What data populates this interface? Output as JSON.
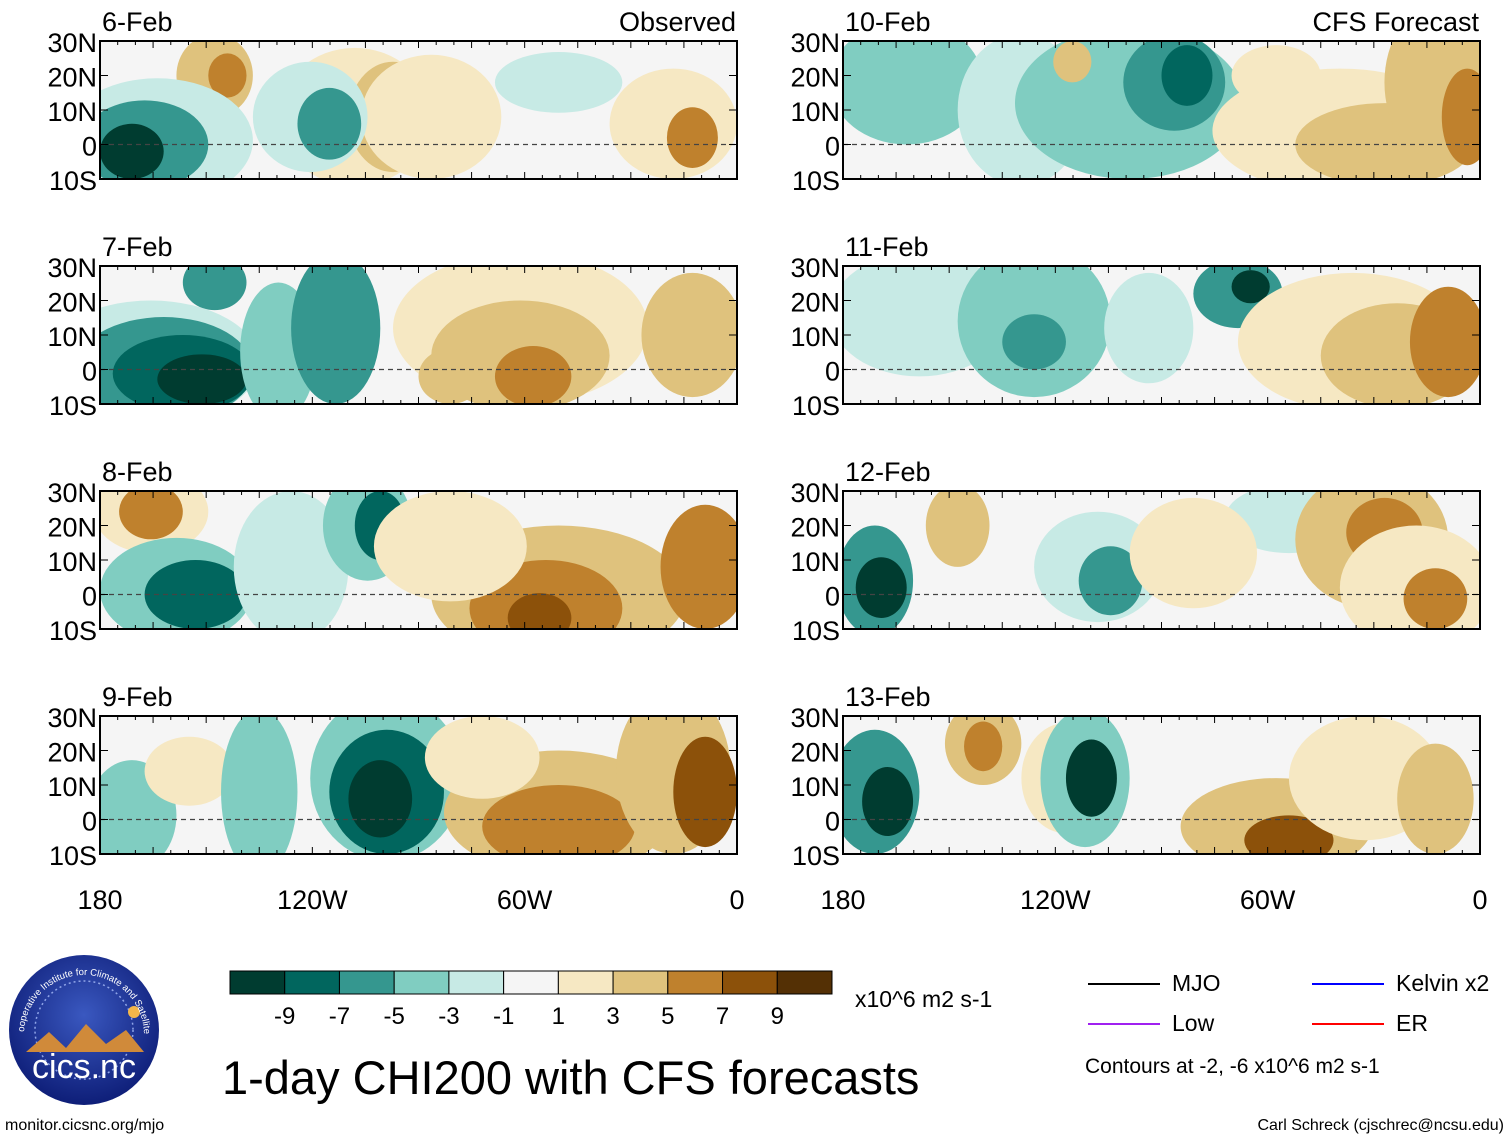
{
  "title": "1-day CHI200 with CFS forecasts",
  "labels": {
    "observed": "Observed",
    "forecast": "CFS Forecast"
  },
  "lat_ticks": [
    "30N",
    "20N",
    "10N",
    "0",
    "10S"
  ],
  "lon_ticks": [
    "180",
    "120W",
    "60W",
    "0"
  ],
  "panels": [
    {
      "date": "6-Feb",
      "kind": "observed"
    },
    {
      "date": "7-Feb",
      "kind": "observed"
    },
    {
      "date": "8-Feb",
      "kind": "observed"
    },
    {
      "date": "9-Feb",
      "kind": "observed"
    },
    {
      "date": "10-Feb",
      "kind": "forecast"
    },
    {
      "date": "11-Feb",
      "kind": "forecast"
    },
    {
      "date": "12-Feb",
      "kind": "forecast"
    },
    {
      "date": "13-Feb",
      "kind": "forecast"
    }
  ],
  "colorbar": {
    "tick_labels": [
      "-9",
      "-7",
      "-5",
      "-3",
      "-1",
      "1",
      "3",
      "5",
      "7",
      "9"
    ],
    "colors": [
      "#003c30",
      "#01665e",
      "#35978f",
      "#80cdc1",
      "#c7eae5",
      "#f5f5f5",
      "#f6e8c3",
      "#dfc27d",
      "#bf812d",
      "#8c510a",
      "#543005"
    ],
    "units": "x10^6 m2 s-1"
  },
  "legend": {
    "items": [
      {
        "label": "MJO",
        "color": "#000000"
      },
      {
        "label": "Kelvin x2",
        "color": "#0000ff"
      },
      {
        "label": "Low",
        "color": "#a020f0"
      },
      {
        "label": "ER",
        "color": "#ff0000"
      }
    ],
    "note": "Contours at -2, -6 x10^6 m2 s-1"
  },
  "logo_text": "cics.nc",
  "logo_ring_text": "Cooperative Institute for Climate and Satellites",
  "footer": {
    "left": "monitor.cicsnc.org/mjo",
    "right": "Carl Schreck (cjschrec@ncsu.edu)"
  }
}
